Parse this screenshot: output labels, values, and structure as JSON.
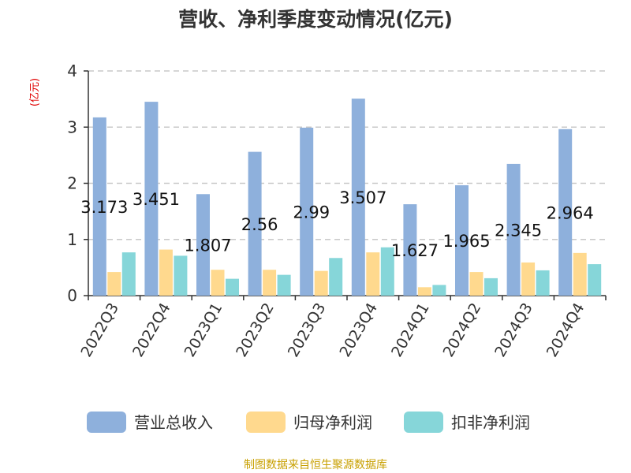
{
  "chart_data": {
    "type": "bar",
    "title": "营收、净利季度变动情况(亿元)",
    "unit_label": "(亿元)",
    "categories": [
      "2022Q3",
      "2022Q4",
      "2023Q1",
      "2023Q2",
      "2023Q3",
      "2023Q4",
      "2024Q1",
      "2024Q2",
      "2024Q3",
      "2024Q4"
    ],
    "series": [
      {
        "name": "营业总收入",
        "color": "#8eb0dc",
        "values": [
          3.173,
          3.451,
          1.807,
          2.56,
          2.99,
          3.507,
          1.627,
          1.965,
          2.345,
          2.964
        ],
        "data_labels": [
          "3.173",
          "3.451",
          "1.807",
          "2.56",
          "2.99",
          "3.507",
          "1.627",
          "1.965",
          "2.345",
          "2.964"
        ]
      },
      {
        "name": "归母净利润",
        "color": "#ffd98e",
        "values": [
          0.42,
          0.82,
          0.46,
          0.46,
          0.44,
          0.77,
          0.15,
          0.42,
          0.59,
          0.76
        ]
      },
      {
        "name": "扣非净利润",
        "color": "#86d6d9",
        "values": [
          0.77,
          0.71,
          0.3,
          0.37,
          0.67,
          0.86,
          0.19,
          0.31,
          0.45,
          0.56
        ]
      }
    ],
    "ylim": [
      0,
      4
    ],
    "yticks": [
      "0",
      "1",
      "2",
      "3",
      "4"
    ],
    "grid": true,
    "legend_position": "bottom"
  },
  "source": "制图数据来自恒生聚源数据库"
}
